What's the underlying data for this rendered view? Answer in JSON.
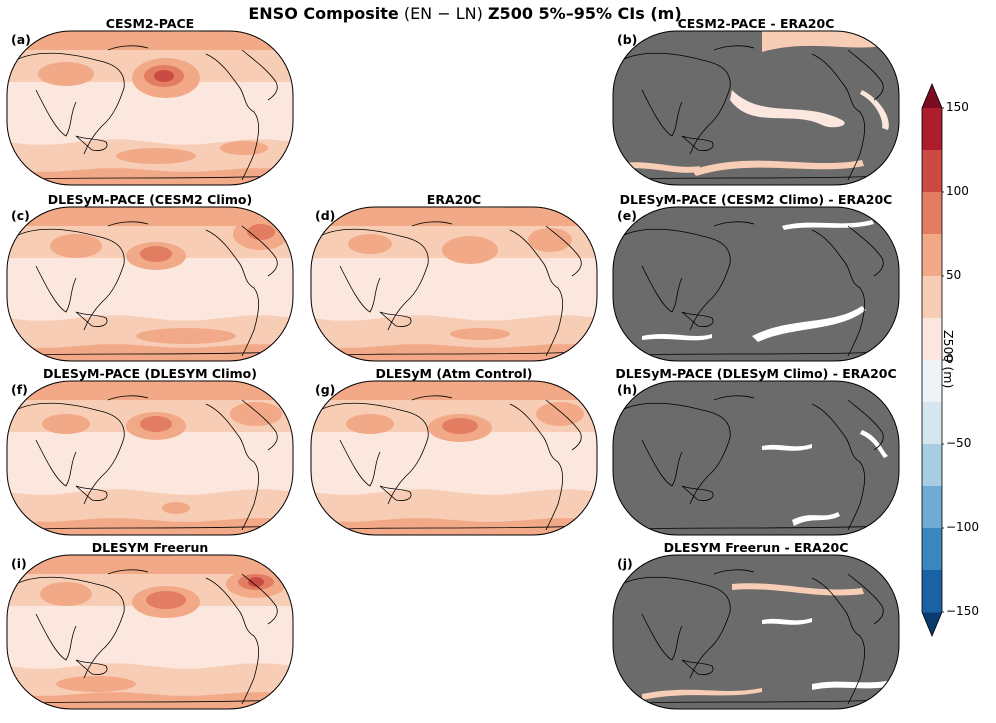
{
  "figure": {
    "title_bold_1": "ENSO Composite",
    "title_normal": "(EN − LN)",
    "title_bold_2": "Z500 5%–95% CIs (m)"
  },
  "panels": [
    {
      "id": "a",
      "label": "(a)",
      "title": "CESM2-PACE",
      "kind": "field",
      "variant": 1
    },
    {
      "id": "b",
      "label": "(b)",
      "title": "CESM2-PACE - ERA20C",
      "kind": "diff",
      "variant": 1
    },
    {
      "id": "c",
      "label": "(c)",
      "title": "DLESyM-PACE (CESM2 Climo)",
      "kind": "field",
      "variant": 2
    },
    {
      "id": "d",
      "label": "(d)",
      "title": "ERA20C",
      "kind": "field",
      "variant": 3
    },
    {
      "id": "e",
      "label": "(e)",
      "title": "DLESyM-PACE (CESM2 Climo) - ERA20C",
      "kind": "diff",
      "variant": 2
    },
    {
      "id": "f",
      "label": "(f)",
      "title": "DLESyM-PACE (DLESYM Climo)",
      "kind": "field",
      "variant": 4
    },
    {
      "id": "g",
      "label": "(g)",
      "title": "DLESyM (Atm Control)",
      "kind": "field",
      "variant": 5
    },
    {
      "id": "h",
      "label": "(h)",
      "title": "DLESyM-PACE (DLESyM Climo) - ERA20C",
      "kind": "diff",
      "variant": 3
    },
    {
      "id": "i",
      "label": "(i)",
      "title": "DLESYM Freerun",
      "kind": "field",
      "variant": 6
    },
    {
      "id": "j",
      "label": "(j)",
      "title": "DLESYM Freerun - ERA20C",
      "kind": "diff",
      "variant": 4
    }
  ],
  "colorbar": {
    "label": "Z500 (m)",
    "vmin": -150,
    "vmax": 150,
    "step": 25,
    "ticks": [
      "150",
      "100",
      "50",
      "0",
      "−50",
      "−100",
      "−150"
    ],
    "tick_values": [
      150,
      100,
      50,
      0,
      -50,
      -100,
      -150
    ],
    "colors": [
      "#0b3c6f",
      "#1b62a5",
      "#3a87c0",
      "#6fabd2",
      "#a7cde3",
      "#d5e6f1",
      "#eef3f7",
      "#fbe7dd",
      "#f8cdb5",
      "#f2a987",
      "#e27d62",
      "#cb4a43",
      "#ad1d2e",
      "#7a0d22"
    ],
    "extend": "both"
  },
  "chart_data": {
    "type": "heatmap",
    "projection": "Robinson (Pacific-centered)",
    "quantity": "Z500 ENSO composite (EN − LN) 5%–95% confidence interval width",
    "units": "m",
    "levels": [
      -150,
      -125,
      -100,
      -75,
      -50,
      -25,
      0,
      25,
      50,
      75,
      100,
      125,
      150
    ],
    "fields": {
      "CESM2-PACE": {
        "tropics": "0-25",
        "mid_latitudes": "25-50",
        "north_pacific_max": "100-125"
      },
      "DLESyM-PACE (CESM2 Climo)": {
        "tropics": "0-25",
        "mid_latitudes": "25-50",
        "north_pacific_max": "75-100"
      },
      "ERA20C": {
        "tropics": "0-25",
        "mid_latitudes": "25-50",
        "north_pacific_max": "50-75"
      },
      "DLESyM-PACE (DLESYM Climo)": {
        "tropics": "0-25",
        "mid_latitudes": "25-50",
        "north_pacific_max": "75-100"
      },
      "DLESyM (Atm Control)": {
        "tropics": "0-25",
        "mid_latitudes": "25-50",
        "north_pacific_max": "75-100"
      },
      "DLESYM Freerun": {
        "tropics": "0-25",
        "mid_latitudes": "25-50",
        "north_pacific_max": "75-100"
      }
    },
    "differences": {
      "note": "Gray shading masks differences not significant; positive bands 0-50 m remain",
      "CESM2-PACE - ERA20C": "masked with patches of 0-50",
      "DLESyM-PACE (CESM2 Climo) - ERA20C": "mostly masked",
      "DLESyM-PACE (DLESyM Climo) - ERA20C": "mostly masked",
      "DLESYM Freerun - ERA20C": "masked with patches of 0-25"
    }
  }
}
